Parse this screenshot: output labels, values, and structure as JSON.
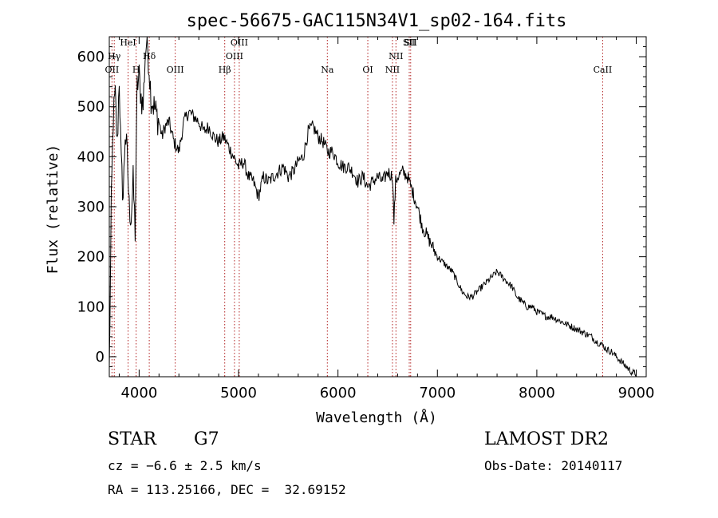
{
  "chart_data": {
    "type": "line",
    "title": "spec-56675-GAC115N34V1_sp02-164.fits",
    "xlabel": "Wavelength (Å)",
    "ylabel": "Flux (relative)",
    "xlim": [
      3700,
      9100
    ],
    "ylim": [
      -40,
      640
    ],
    "xticks": [
      4000,
      5000,
      6000,
      7000,
      8000,
      9000
    ],
    "yticks": [
      0,
      100,
      200,
      300,
      400,
      500,
      600
    ],
    "grid": false,
    "series": [
      {
        "x": [
          3700,
          3720,
          3740,
          3760,
          3780,
          3800,
          3820,
          3840,
          3860,
          3880,
          3900,
          3920,
          3940,
          3960,
          3980,
          4000,
          4020,
          4040,
          4060,
          4080,
          4100,
          4120,
          4150,
          4180,
          4200,
          4230,
          4260,
          4300,
          4350,
          4400,
          4450,
          4500,
          4550,
          4600,
          4650,
          4700,
          4750,
          4800,
          4850,
          4900,
          4950,
          5000,
          5050,
          5100,
          5150,
          5200,
          5250,
          5300,
          5350,
          5400,
          5450,
          5500,
          5550,
          5600,
          5650,
          5700,
          5750,
          5800,
          5850,
          5900,
          5950,
          6000,
          6050,
          6100,
          6150,
          6200,
          6250,
          6300,
          6350,
          6400,
          6450,
          6500,
          6550,
          6563,
          6580,
          6600,
          6650,
          6700,
          6750,
          6800,
          6850,
          6900,
          6950,
          7000,
          7050,
          7100,
          7150,
          7200,
          7250,
          7300,
          7350,
          7400,
          7450,
          7500,
          7550,
          7600,
          7650,
          7700,
          7750,
          7800,
          7850,
          7900,
          7950,
          8000,
          8050,
          8100,
          8150,
          8200,
          8250,
          8300,
          8350,
          8400,
          8450,
          8500,
          8550,
          8600,
          8650,
          8700,
          8750,
          8800,
          8850,
          8900,
          8950,
          9000
        ],
        "values": [
          -30,
          300,
          480,
          520,
          420,
          560,
          380,
          320,
          450,
          400,
          300,
          280,
          350,
          250,
          540,
          560,
          520,
          500,
          600,
          640,
          580,
          520,
          500,
          480,
          470,
          440,
          460,
          470,
          430,
          410,
          470,
          490,
          480,
          470,
          450,
          460,
          440,
          430,
          440,
          420,
          400,
          380,
          390,
          360,
          350,
          320,
          360,
          350,
          360,
          370,
          380,
          360,
          370,
          390,
          400,
          450,
          460,
          440,
          430,
          410,
          410,
          390,
          380,
          380,
          370,
          350,
          360,
          340,
          350,
          360,
          350,
          370,
          360,
          270,
          350,
          360,
          370,
          360,
          330,
          300,
          260,
          240,
          220,
          200,
          190,
          180,
          170,
          150,
          130,
          120,
          120,
          130,
          140,
          150,
          160,
          170,
          160,
          150,
          140,
          120,
          110,
          100,
          100,
          90,
          85,
          80,
          80,
          75,
          70,
          65,
          60,
          55,
          50,
          45,
          40,
          30,
          25,
          15,
          10,
          0,
          -10,
          -20,
          -30,
          -35
        ]
      }
    ],
    "lines": [
      {
        "label": "OII",
        "x": 3727
      },
      {
        "label": "Hγ",
        "x": 3750
      },
      {
        "label": "HeI",
        "x": 3889
      },
      {
        "label": "H",
        "x": 3970
      },
      {
        "label": "Hδ",
        "x": 4102
      },
      {
        "label": "OIII",
        "x": 4363
      },
      {
        "label": "Hβ",
        "x": 4861
      },
      {
        "label": "OIII",
        "x": 4959
      },
      {
        "label": "OIII",
        "x": 5007
      },
      {
        "label": "Na",
        "x": 5893
      },
      {
        "label": "OI",
        "x": 6300
      },
      {
        "label": "NII",
        "x": 6548
      },
      {
        "label": "NII",
        "x": 6583
      },
      {
        "label": "SII",
        "x": 6717
      },
      {
        "label": "SII",
        "x": 6731
      },
      {
        "label": "CaII",
        "x": 8662
      }
    ]
  },
  "info": {
    "class": "STAR",
    "subclass": "G7",
    "survey": "LAMOST DR2",
    "cz": "cz = −6.6 ± 2.5 km/s",
    "obs_date": "Obs-Date: 20140117",
    "coords": "RA = 113.25166, DEC =  32.69152"
  }
}
